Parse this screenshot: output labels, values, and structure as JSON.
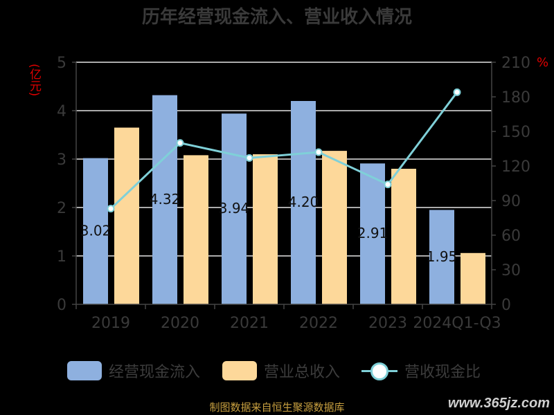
{
  "title": "历年经营现金流入、营业收入情况",
  "unit_left": "(亿元)",
  "unit_right": "%",
  "legend": [
    {
      "label": "经营现金流入",
      "color": "#8eb0df",
      "kind": "bar"
    },
    {
      "label": "营业总收入",
      "color": "#fdd89a",
      "kind": "bar"
    },
    {
      "label": "营收现金比",
      "color": "#7fd0d8",
      "kind": "line"
    }
  ],
  "source": "制图数据来自恒生聚源数据库",
  "watermark": "www.365jz.com",
  "chart_data": {
    "type": "bar",
    "title": "历年经营现金流入、营业收入情况",
    "categories": [
      "2019",
      "2020",
      "2021",
      "2022",
      "2023",
      "2024Q1-Q3"
    ],
    "series": [
      {
        "name": "经营现金流入",
        "type": "bar",
        "axis": "left",
        "color": "#8eb0df",
        "values": [
          3.02,
          4.32,
          3.94,
          4.2,
          2.91,
          1.95
        ]
      },
      {
        "name": "营业总收入",
        "type": "bar",
        "axis": "left",
        "color": "#fdd89a",
        "values": [
          3.65,
          3.08,
          3.1,
          3.17,
          2.8,
          1.06
        ]
      },
      {
        "name": "营收现金比",
        "type": "line",
        "axis": "right",
        "color": "#7fd0d8",
        "values": [
          83,
          140,
          127,
          132,
          104,
          184
        ]
      }
    ],
    "data_labels": [
      "3.02",
      "4.32",
      "3.94",
      "4.20",
      "2.91",
      "1.95"
    ],
    "y_left": {
      "label": "(亿元)",
      "min": 0,
      "max": 5,
      "ticks": [
        "0",
        "1",
        "2",
        "3",
        "4",
        "5"
      ]
    },
    "y_right": {
      "label": "%",
      "min": 0,
      "max": 210,
      "ticks": [
        "0",
        "30",
        "60",
        "90",
        "120",
        "150",
        "180",
        "210"
      ]
    },
    "grid": true,
    "legend_position": "bottom"
  }
}
